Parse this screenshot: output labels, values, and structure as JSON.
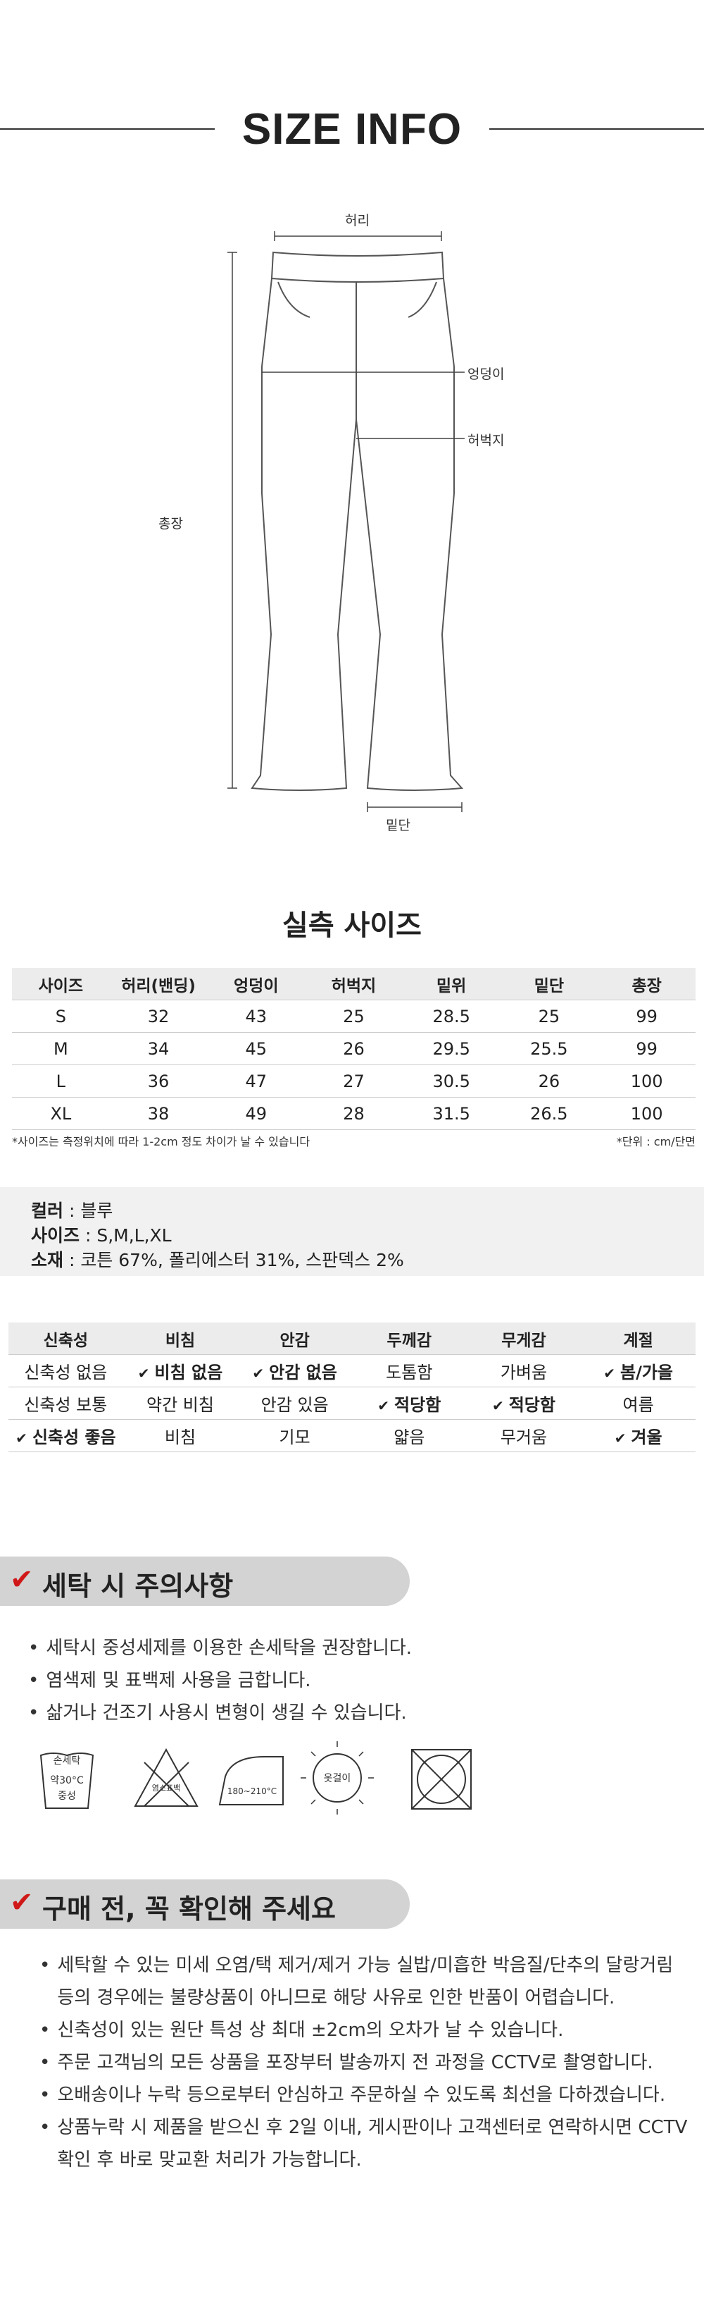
{
  "header": {
    "title": "SIZE INFO"
  },
  "diagram": {
    "waist": "허리",
    "hip": "엉덩이",
    "thigh": "허벅지",
    "length": "총장",
    "hem": "밑단"
  },
  "size_table": {
    "title": "실측 사이즈",
    "headers": [
      "사이즈",
      "허리(밴딩)",
      "엉덩이",
      "허벅지",
      "밑위",
      "밑단",
      "총장"
    ],
    "rows": [
      [
        "S",
        "32",
        "43",
        "25",
        "28.5",
        "25",
        "99"
      ],
      [
        "M",
        "34",
        "45",
        "26",
        "29.5",
        "25.5",
        "99"
      ],
      [
        "L",
        "36",
        "47",
        "27",
        "30.5",
        "26",
        "100"
      ],
      [
        "XL",
        "38",
        "49",
        "28",
        "31.5",
        "26.5",
        "100"
      ]
    ],
    "note_left": "*사이즈는 측정위치에 따라 1-2cm 정도 차이가 날 수 있습니다",
    "note_right": "*단위 : cm/단면"
  },
  "info": {
    "rows": [
      {
        "label": "컬러",
        "value": " : 블루"
      },
      {
        "label": "사이즈",
        "value": " : S,M,L,XL"
      },
      {
        "label": "소재",
        "value": " : 코튼 67%, 폴리에스터 31%, 스판덱스 2%"
      }
    ]
  },
  "feature_table": {
    "headers": [
      "신축성",
      "비침",
      "안감",
      "두께감",
      "무게감",
      "계절"
    ],
    "rows": [
      [
        {
          "label": "신축성 없음",
          "selected": false
        },
        {
          "label": "비침 없음",
          "selected": true
        },
        {
          "label": "안감 없음",
          "selected": true
        },
        {
          "label": "도톰함",
          "selected": false
        },
        {
          "label": "가벼움",
          "selected": false
        },
        {
          "label": "봄/가을",
          "selected": true
        }
      ],
      [
        {
          "label": "신축성 보통",
          "selected": false
        },
        {
          "label": "약간 비침",
          "selected": false
        },
        {
          "label": "안감 있음",
          "selected": false
        },
        {
          "label": "적당함",
          "selected": true
        },
        {
          "label": "적당함",
          "selected": true
        },
        {
          "label": "여름",
          "selected": false
        }
      ],
      [
        {
          "label": "신축성 좋음",
          "selected": true
        },
        {
          "label": "비침",
          "selected": false
        },
        {
          "label": "기모",
          "selected": false
        },
        {
          "label": "얇음",
          "selected": false
        },
        {
          "label": "무거움",
          "selected": false
        },
        {
          "label": "겨울",
          "selected": true
        }
      ]
    ]
  },
  "washing": {
    "title": "세탁 시 주의사항",
    "items": [
      "세탁시 중성세제를 이용한 손세탁을 권장합니다.",
      "염색제 및 표백제 사용을 금합니다.",
      "삶거나 건조기 사용시 변형이 생길 수 있습니다."
    ],
    "icons": {
      "hand_wash": [
        "손세탁",
        "약30°C",
        "중성"
      ],
      "bleach": "염소표백",
      "iron": "180~210°C",
      "dry": "옷걸이"
    }
  },
  "purchase": {
    "title": "구매 전, 꼭 확인해 주세요",
    "items": [
      "세탁할 수 있는 미세 오염/택 제거/제거 가능 실밥/미흡한 박음질/단추의 달랑거림 등의 경우에는 불량상품이 아니므로 해당 사유로 인한 반품이 어렵습니다.",
      "신축성이 있는 원단 특성 상 최대 ±2cm의 오차가 날 수 있습니다.",
      "주문 고객님의 모든 상품을 포장부터 발송까지 전 과정을 CCTV로 촬영합니다.",
      "오배송이나 누락 등으로부터 안심하고 주문하실 수 있도록 최선을 다하겠습니다.",
      "상품누락 시 제품을 받으신 후 2일 이내, 게시판이나 고객센터로 연락하시면 CCTV 확인 후 바로 맞교환 처리가 가능합니다."
    ]
  }
}
